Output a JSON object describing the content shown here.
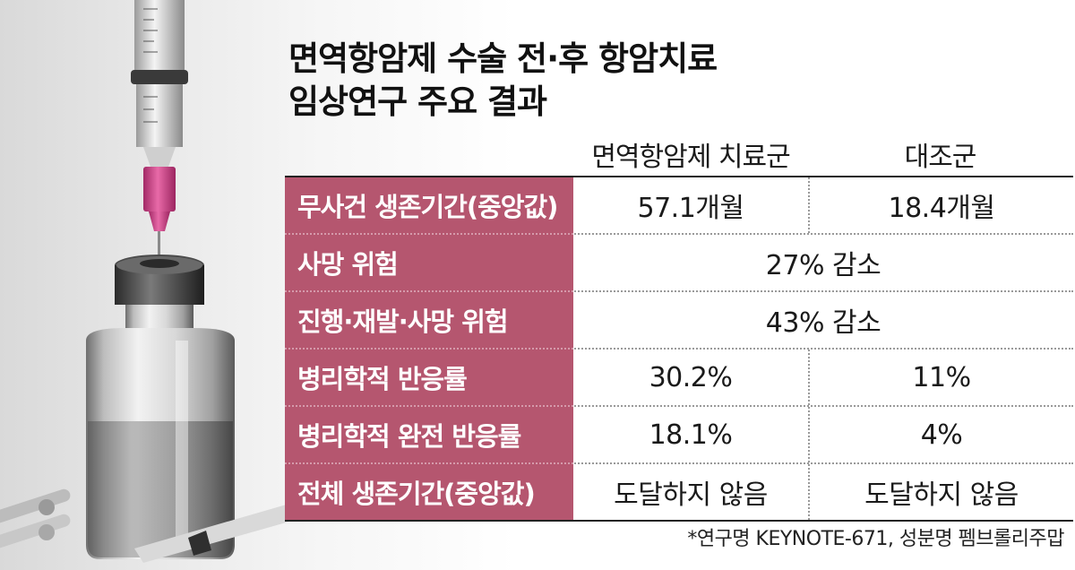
{
  "title": {
    "line1": "면역항암제 수술 전·후 항암치료",
    "line2": "임상연구 주요 결과"
  },
  "table": {
    "headers": {
      "treatment": "면역항암제 치료군",
      "control": "대조군"
    },
    "rows": [
      {
        "label": "무사건 생존기간(중앙값)",
        "treatment": "57.1개월",
        "control": "18.4개월"
      },
      {
        "label": "사망 위험",
        "merged": "27% 감소"
      },
      {
        "label": "진행·재발·사망 위험",
        "merged": "43% 감소"
      },
      {
        "label": "병리학적 반응률",
        "treatment": "30.2%",
        "control": "11%"
      },
      {
        "label": "병리학적 완전 반응률",
        "treatment": "18.1%",
        "control": "4%"
      },
      {
        "label": "전체 생존기간(중앙값)",
        "treatment": "도달하지 않음",
        "control": "도달하지 않음"
      }
    ]
  },
  "footnote": "*연구명 KEYNOTE-671, 성분명 펨브롤리주맙",
  "colors": {
    "label_background": "#b5566f",
    "label_text": "#ffffff",
    "needle_hub": "#d0458a"
  },
  "illustration": {
    "icon": "syringe-and-vial-icon"
  }
}
